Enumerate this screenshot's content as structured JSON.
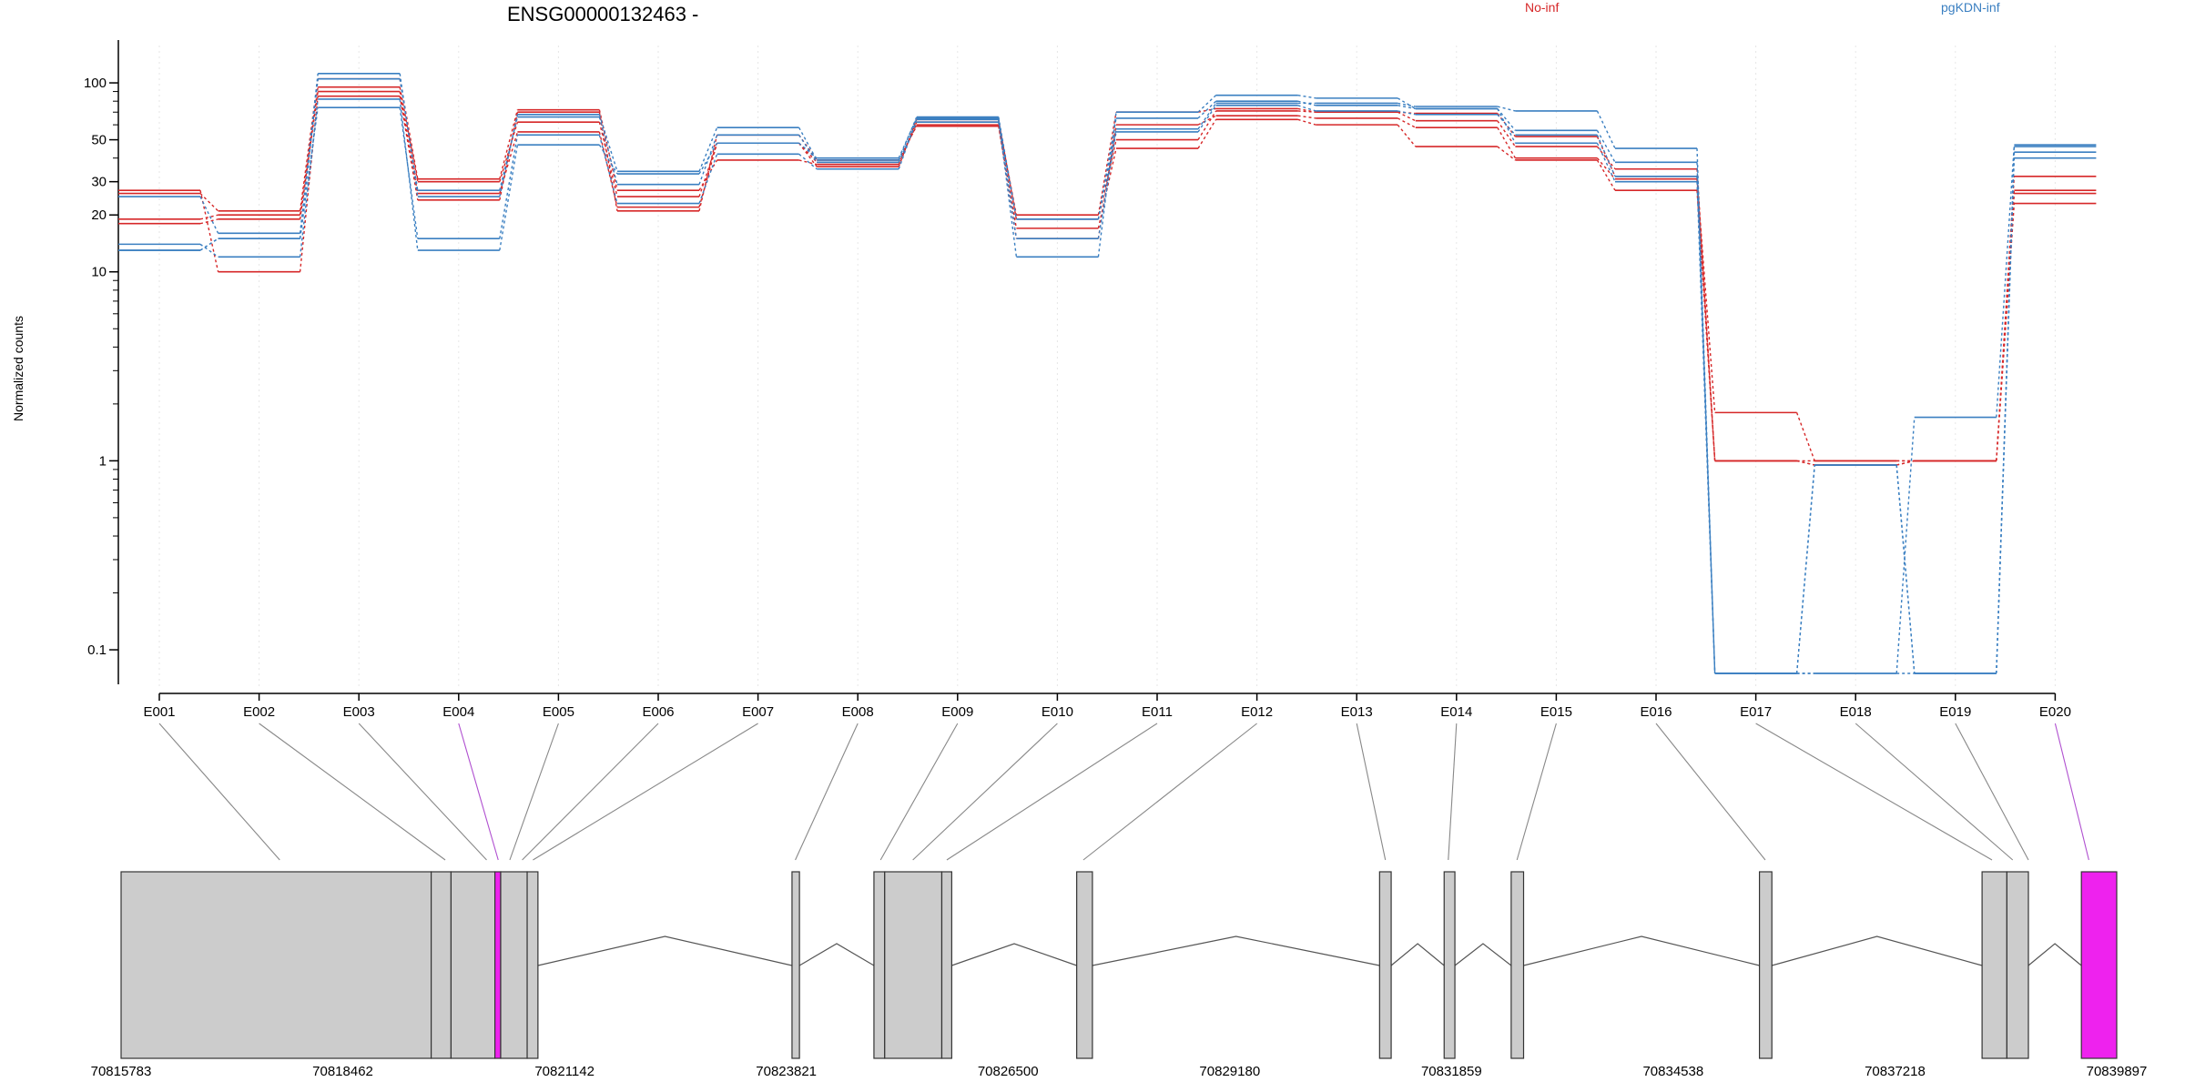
{
  "chart_data": {
    "type": "line",
    "title": "ENSG00000132463 -",
    "ylabel": "Normalized counts",
    "yscale": "log",
    "ylim": [
      0.075,
      135
    ],
    "y_ticks": [
      {
        "v": 0.1,
        "label": "0.1"
      },
      {
        "v": 1,
        "label": "1"
      },
      {
        "v": 10,
        "label": "10"
      },
      {
        "v": 20,
        "label": "20"
      },
      {
        "v": 30,
        "label": "30"
      },
      {
        "v": 50,
        "label": "50"
      },
      {
        "v": 100,
        "label": "100"
      }
    ],
    "categories": [
      "E001",
      "E002",
      "E003",
      "E004",
      "E005",
      "E006",
      "E007",
      "E008",
      "E009",
      "E010",
      "E011",
      "E012",
      "E013",
      "E014",
      "E015",
      "E016",
      "E017",
      "E018",
      "E019",
      "E020"
    ],
    "groups": [
      {
        "name": "No-inf",
        "color": "#d62728"
      },
      {
        "name": "pgKDN-inf",
        "color": "#3a7fc1"
      }
    ],
    "series": [
      {
        "group": 0,
        "values": [
          26,
          21,
          105,
          31,
          72,
          27,
          39,
          37,
          62,
          20,
          70,
          73,
          70,
          63,
          46,
          35,
          1.0,
          1.0,
          1.0,
          23
        ]
      },
      {
        "group": 0,
        "values": [
          19,
          20,
          95,
          30,
          62,
          25,
          48,
          36,
          64,
          19,
          50,
          71,
          70,
          69,
          52,
          32,
          1.0,
          0.95,
          1.0,
          26
        ]
      },
      {
        "group": 0,
        "values": [
          18,
          19,
          90,
          26,
          55,
          22,
          48,
          38,
          60,
          15,
          60,
          67,
          65,
          58,
          40,
          31,
          1.8,
          1.0,
          1.0,
          32
        ]
      },
      {
        "group": 0,
        "values": [
          27,
          10,
          85,
          24,
          70,
          21,
          53,
          39,
          59,
          17,
          45,
          64,
          60,
          46,
          39,
          27,
          1.0,
          0.95,
          1.0,
          27
        ]
      },
      {
        "group": 1,
        "values": [
          25,
          16,
          112,
          25,
          68,
          34,
          58,
          39,
          66,
          19,
          57,
          78,
          78,
          75,
          71,
          45,
          0.075,
          0.075,
          1.7,
          47
        ]
      },
      {
        "group": 1,
        "values": [
          14,
          12,
          82,
          13,
          47,
          33,
          48,
          40,
          65,
          12,
          70,
          86,
          83,
          73,
          56,
          38,
          0.075,
          0.95,
          0.075,
          46
        ]
      },
      {
        "group": 1,
        "values": [
          13,
          15,
          74,
          15,
          53,
          23,
          42,
          35,
          64,
          15,
          55,
          76,
          71,
          68,
          53,
          32,
          0.075,
          0.95,
          0.075,
          40
        ]
      },
      {
        "group": 1,
        "values": [
          13,
          15,
          105,
          27,
          66,
          29,
          53,
          38,
          62,
          19,
          65,
          80,
          76,
          73,
          48,
          30,
          0.075,
          0.075,
          0.075,
          43
        ]
      }
    ],
    "gene_model": {
      "start": 70815783,
      "end": 70839897,
      "axis_ticks": [
        "70815783",
        "70818462",
        "70821142",
        "70823821",
        "70826500",
        "70829180",
        "70831859",
        "70834538",
        "70837218",
        "70839897"
      ],
      "exons": [
        {
          "start": 70815783,
          "end": 70819530,
          "highlight": false
        },
        {
          "start": 70819530,
          "end": 70819770,
          "highlight": false
        },
        {
          "start": 70819770,
          "end": 70820300,
          "highlight": false
        },
        {
          "start": 70820300,
          "end": 70820370,
          "highlight": true
        },
        {
          "start": 70820370,
          "end": 70820690,
          "highlight": false
        },
        {
          "start": 70820690,
          "end": 70820820,
          "highlight": false
        },
        {
          "start": 70823890,
          "end": 70823980,
          "highlight": false
        },
        {
          "start": 70824880,
          "end": 70825010,
          "highlight": false
        },
        {
          "start": 70825010,
          "end": 70825700,
          "highlight": false
        },
        {
          "start": 70825700,
          "end": 70825820,
          "highlight": false
        },
        {
          "start": 70827330,
          "end": 70827520,
          "highlight": false
        },
        {
          "start": 70830990,
          "end": 70831130,
          "highlight": false
        },
        {
          "start": 70831770,
          "end": 70831900,
          "highlight": false
        },
        {
          "start": 70832580,
          "end": 70832730,
          "highlight": false
        },
        {
          "start": 70835580,
          "end": 70835730,
          "highlight": false
        },
        {
          "start": 70838270,
          "end": 70838570,
          "highlight": false
        },
        {
          "start": 70838570,
          "end": 70838830,
          "highlight": false
        },
        {
          "start": 70839470,
          "end": 70839897,
          "highlight": true
        }
      ],
      "bin_positions": [
        70817700,
        70819700,
        70820200,
        70820340,
        70820480,
        70820630,
        70820760,
        70823930,
        70824960,
        70825350,
        70825760,
        70827410,
        70831060,
        70831820,
        70832650,
        70835650,
        70838390,
        70838640,
        70838830,
        70839560
      ],
      "highlight_bins": [
        3,
        19
      ],
      "highlight_color": "#ee22ee"
    }
  }
}
